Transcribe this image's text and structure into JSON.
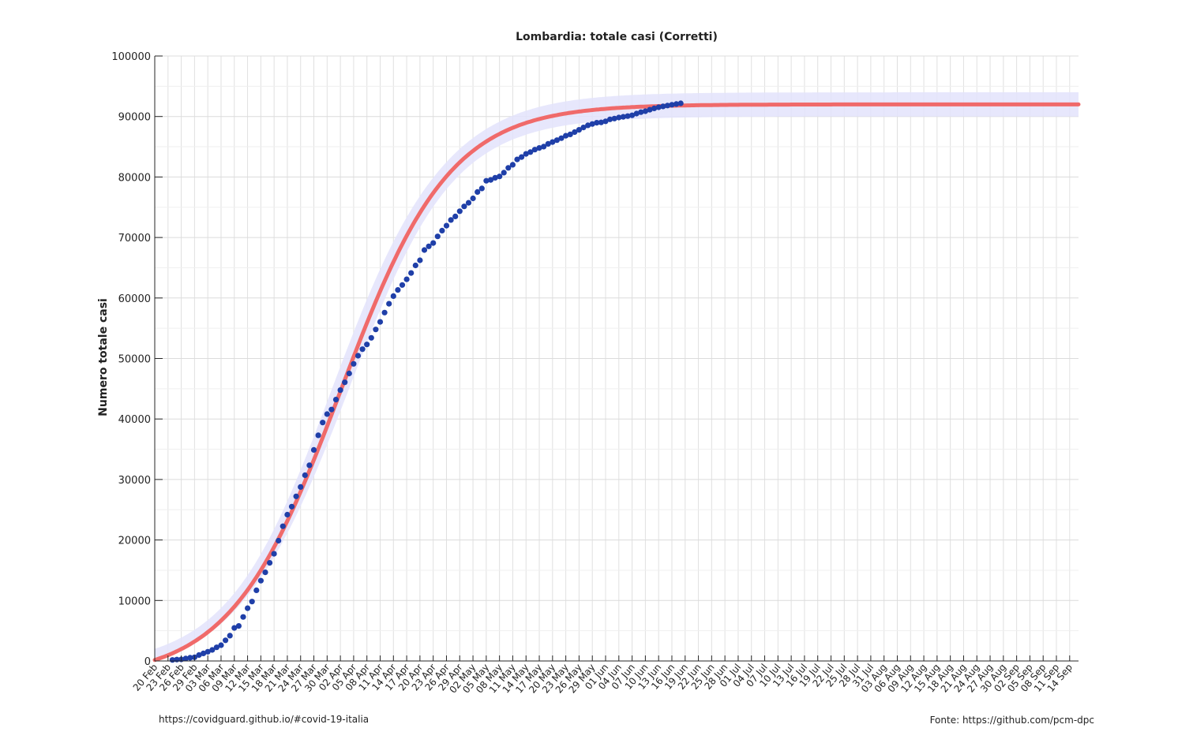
{
  "chart_data": {
    "type": "line",
    "title": "Lombardia: totale casi (Corretti)",
    "xlabel": "",
    "ylabel": "Numero totale casi",
    "ylim": [
      0,
      100000
    ],
    "yticks": [
      0,
      10000,
      20000,
      30000,
      40000,
      50000,
      60000,
      70000,
      80000,
      90000,
      100000
    ],
    "xlim": [
      "2020-02-20",
      "2020-09-16"
    ],
    "x_tick_interval_days": 3,
    "grid": true,
    "colors": {
      "observed": "#1f3fa8",
      "fit": "#f06a6a",
      "band": "#e3e3fb"
    },
    "x_tick_labels": [
      "20 Feb",
      "23 Feb",
      "26 Feb",
      "29 Feb",
      "03 Mar",
      "06 Mar",
      "09 Mar",
      "12 Mar",
      "15 Mar",
      "18 Mar",
      "21 Mar",
      "24 Mar",
      "27 Mar",
      "30 Mar",
      "02 Apr",
      "05 Apr",
      "08 Apr",
      "11 Apr",
      "14 Apr",
      "17 Apr",
      "20 Apr",
      "23 Apr",
      "26 Apr",
      "29 Apr",
      "02 May",
      "05 May",
      "08 May",
      "11 May",
      "14 May",
      "17 May",
      "20 May",
      "23 May",
      "26 May",
      "29 May",
      "01 Jun",
      "04 Jun",
      "07 Jun",
      "10 Jun",
      "13 Jun",
      "16 Jun",
      "19 Jun",
      "22 Jun",
      "25 Jun",
      "28 Jun",
      "01 Jul",
      "04 Jul",
      "07 Jul",
      "10 Jul",
      "13 Jul",
      "16 Jul",
      "19 Jul",
      "22 Jul",
      "25 Jul",
      "28 Jul",
      "31 Jul",
      "03 Aug",
      "06 Aug",
      "09 Aug",
      "12 Aug",
      "15 Aug",
      "18 Aug",
      "21 Aug",
      "24 Aug",
      "27 Aug",
      "30 Aug",
      "02 Sep",
      "05 Sep",
      "08 Sep",
      "11 Sep",
      "14 Sep"
    ],
    "series": [
      {
        "name": "",
        "kind": "observed-points",
        "start": "2020-02-24",
        "y": [
          172,
          240,
          258,
          403,
          531,
          615,
          984,
          1254,
          1520,
          1820,
          2251,
          2612,
          3420,
          4189,
          5469,
          5791,
          7280,
          8725,
          9820,
          11685,
          13272,
          14649,
          16220,
          17713,
          19884,
          22264,
          24189,
          25515,
          27206,
          28761,
          30703,
          32346,
          34889,
          37298,
          39415,
          40814,
          41564,
          43208,
          44773,
          46065,
          47520,
          49118,
          50455,
          51534,
          52325,
          53414,
          54802,
          56048,
          57592,
          59052,
          60314,
          61326,
          62153,
          63094,
          64135,
          65381,
          66236,
          67931,
          68545,
          69092,
          70186,
          71140,
          71960,
          72889,
          73479,
          74348,
          75134,
          75732,
          76469,
          77528,
          78105,
          79369,
          79520,
          79872,
          80089,
          80723,
          81507,
          82019,
          82904,
          83298,
          83820,
          84119,
          84518,
          84804,
          85019,
          85481,
          85775,
          86091,
          86421,
          86825,
          87042,
          87417,
          87801,
          88183,
          88537,
          88758,
          88968,
          89018,
          89205,
          89526,
          89665,
          89826,
          89953,
          90070,
          90195,
          90482,
          90721,
          90877,
          91119,
          91337,
          91530,
          91672,
          91808,
          91941,
          92060,
          92181
        ]
      },
      {
        "name": "",
        "kind": "fit-line",
        "start": "2020-02-20",
        "end": "2020-09-16",
        "model": "logistic",
        "y_final": 92000,
        "y_start": 150,
        "midpoint": "2020-04-02",
        "rate_per_day": 0.081
      },
      {
        "name": "",
        "kind": "confidence-band",
        "start": "2020-02-20",
        "end": "2020-09-16",
        "lower_final": 90000,
        "upper_final": 94000,
        "lower_start": 0,
        "upper_start": 2000
      }
    ]
  },
  "footer": {
    "left": "https://covidguard.github.io/#covid-19-italia",
    "right": "Fonte: https://github.com/pcm-dpc"
  }
}
